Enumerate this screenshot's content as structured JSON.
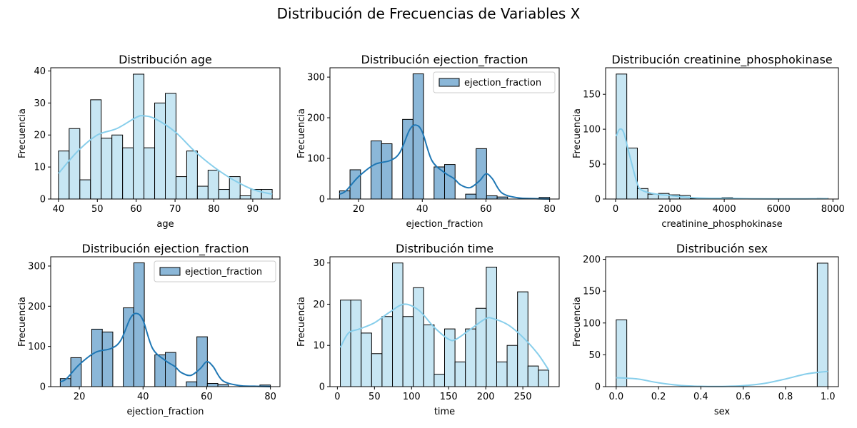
{
  "figure_title": "Distribución de Frecuencias de Variables X",
  "colors": {
    "light_fill": "#c7e6f3",
    "light_kde": "#87ceeb",
    "dark_fill": "#8bb7d8",
    "dark_kde": "#1f77b4",
    "edge": "#000000"
  },
  "chart_data": [
    {
      "type": "bar",
      "title": "Distribución age",
      "xlabel": "age",
      "ylabel": "Frecuencia",
      "color_scheme": "light",
      "bin_edges": [
        40,
        42.75,
        45.5,
        48.25,
        51,
        53.75,
        56.5,
        59.25,
        62,
        64.75,
        67.5,
        70.25,
        73,
        75.75,
        78.5,
        81.25,
        84,
        86.75,
        89.5,
        92.25,
        95
      ],
      "values": [
        15,
        22,
        6,
        31,
        19,
        20,
        16,
        39,
        16,
        30,
        33,
        7,
        15,
        4,
        9,
        3,
        7,
        1,
        3,
        3
      ],
      "kde": {
        "x": [
          40,
          45,
          50,
          55,
          60,
          62,
          65,
          70,
          75,
          80,
          85,
          90,
          95
        ],
        "y": [
          8,
          15,
          20,
          22,
          25.5,
          26,
          25,
          21,
          15,
          10,
          6,
          3,
          1.5
        ]
      },
      "xlim": [
        38,
        97
      ],
      "ylim": [
        0,
        41
      ],
      "xticks": [
        40,
        50,
        60,
        70,
        80,
        90
      ],
      "yticks": [
        0,
        10,
        20,
        30,
        40
      ],
      "legend": null
    },
    {
      "type": "bar",
      "title": "Distribución ejection_fraction",
      "xlabel": "ejection_fraction",
      "ylabel": "Frecuencia",
      "color_scheme": "dark",
      "bin_edges": [
        14,
        17.3,
        20.6,
        23.9,
        27.2,
        30.5,
        33.8,
        37.1,
        40.4,
        43.7,
        47,
        50.3,
        53.6,
        56.9,
        60.2,
        63.5,
        66.8,
        70.1,
        73.4,
        76.7,
        80
      ],
      "values": [
        20,
        72,
        0,
        143,
        136,
        0,
        196,
        308,
        0,
        79,
        85,
        0,
        12,
        124,
        8,
        5,
        0,
        0,
        0,
        4
      ],
      "kde": {
        "x": [
          14,
          16,
          20,
          25,
          30,
          33,
          36,
          38,
          40,
          43,
          47,
          50,
          52,
          55,
          58,
          60,
          62,
          65,
          70,
          75,
          80
        ],
        "y": [
          12,
          20,
          55,
          85,
          95,
          115,
          170,
          182,
          165,
          95,
          65,
          50,
          35,
          28,
          45,
          62,
          50,
          15,
          3,
          1,
          0
        ]
      },
      "xlim": [
        11,
        83
      ],
      "ylim": [
        0,
        323
      ],
      "xticks": [
        20,
        40,
        60,
        80
      ],
      "yticks": [
        0,
        100,
        200,
        300
      ],
      "legend": {
        "label": "ejection_fraction",
        "position": "upper right"
      }
    },
    {
      "type": "bar",
      "title": "Distribución creatinine_phosphokinase",
      "xlabel": "creatinine_phosphokinase",
      "ylabel": "Frecuencia",
      "color_scheme": "light",
      "bin_edges": [
        23,
        412.5,
        802,
        1191.5,
        1581,
        1970.5,
        2360,
        2749.5,
        3139,
        3528.5,
        3918,
        4307.5,
        4697,
        5086.5,
        5476,
        5865.5,
        6255,
        6644.5,
        7034,
        7423.5,
        7813
      ],
      "values": [
        179,
        73,
        15,
        7,
        8,
        6,
        5,
        1,
        1,
        0,
        2,
        1,
        0,
        0,
        0,
        0,
        0,
        0,
        0,
        1
      ],
      "kde": {
        "x": [
          23,
          150,
          300,
          500,
          800,
          1000,
          1500,
          2000,
          2500,
          3000,
          3500,
          4000,
          4500,
          5000,
          6000,
          7000,
          7813
        ],
        "y": [
          90,
          100,
          95,
          65,
          22,
          12,
          7,
          5,
          3,
          1.5,
          1,
          1,
          0.8,
          0.4,
          0.3,
          0.3,
          0.5
        ]
      },
      "xlim": [
        -367,
        8203
      ],
      "ylim": [
        0,
        188
      ],
      "xticks": [
        0,
        2000,
        4000,
        6000,
        8000
      ],
      "yticks": [
        0,
        50,
        100,
        150
      ],
      "legend": null
    },
    {
      "type": "bar",
      "title": "Distribución ejection_fraction",
      "xlabel": "ejection_fraction",
      "ylabel": "Frecuencia",
      "color_scheme": "dark",
      "bin_edges": [
        14,
        17.3,
        20.6,
        23.9,
        27.2,
        30.5,
        33.8,
        37.1,
        40.4,
        43.7,
        47,
        50.3,
        53.6,
        56.9,
        60.2,
        63.5,
        66.8,
        70.1,
        73.4,
        76.7,
        80
      ],
      "values": [
        20,
        72,
        0,
        143,
        136,
        0,
        196,
        308,
        0,
        79,
        85,
        0,
        12,
        124,
        8,
        5,
        0,
        0,
        0,
        4
      ],
      "kde": {
        "x": [
          14,
          16,
          20,
          25,
          30,
          33,
          36,
          38,
          40,
          43,
          47,
          50,
          52,
          55,
          58,
          60,
          62,
          65,
          70,
          75,
          80
        ],
        "y": [
          12,
          20,
          55,
          85,
          95,
          115,
          170,
          182,
          165,
          95,
          65,
          50,
          35,
          28,
          45,
          62,
          50,
          15,
          3,
          1,
          0
        ]
      },
      "xlim": [
        11,
        83
      ],
      "ylim": [
        0,
        323
      ],
      "xticks": [
        20,
        40,
        60,
        80
      ],
      "yticks": [
        0,
        100,
        200,
        300
      ],
      "legend": {
        "label": "ejection_fraction",
        "position": "upper right"
      }
    },
    {
      "type": "bar",
      "title": "Distribución time",
      "xlabel": "time",
      "ylabel": "Frecuencia",
      "color_scheme": "light",
      "bin_edges": [
        4,
        18.05,
        32.1,
        46.15,
        60.2,
        74.25,
        88.3,
        102.35,
        116.4,
        130.45,
        144.5,
        158.55,
        172.6,
        186.65,
        200.7,
        214.75,
        228.8,
        242.85,
        256.9,
        270.95,
        285
      ],
      "values": [
        21,
        21,
        13,
        8,
        17,
        30,
        17,
        24,
        15,
        3,
        14,
        6,
        14,
        19,
        29,
        6,
        10,
        23,
        5,
        4
      ],
      "kde": {
        "x": [
          4,
          15,
          30,
          50,
          70,
          90,
          110,
          130,
          150,
          160,
          180,
          200,
          210,
          230,
          250,
          270,
          285
        ],
        "y": [
          9.5,
          13,
          14,
          15.5,
          18,
          20,
          18.5,
          14.5,
          11.5,
          11.5,
          14,
          16.5,
          16.5,
          15,
          12,
          8,
          4
        ]
      },
      "xlim": [
        -10,
        299
      ],
      "ylim": [
        0,
        31.5
      ],
      "xticks": [
        0,
        50,
        100,
        150,
        200,
        250
      ],
      "yticks": [
        0,
        10,
        20,
        30
      ],
      "legend": null
    },
    {
      "type": "bar",
      "title": "Distribución sex",
      "xlabel": "sex",
      "ylabel": "Frecuencia",
      "color_scheme": "light",
      "bin_edges": [
        0,
        0.05,
        0.1,
        0.15,
        0.2,
        0.25,
        0.3,
        0.35,
        0.4,
        0.45,
        0.5,
        0.55,
        0.6,
        0.65,
        0.7,
        0.75,
        0.8,
        0.85,
        0.9,
        0.95,
        1.0
      ],
      "values": [
        105,
        0,
        0,
        0,
        0,
        0,
        0,
        0,
        0,
        0,
        0,
        0,
        0,
        0,
        0,
        0,
        0,
        0,
        0,
        194
      ],
      "kde": {
        "x": [
          0,
          0.1,
          0.2,
          0.3,
          0.4,
          0.5,
          0.6,
          0.7,
          0.8,
          0.9,
          1.0
        ],
        "y": [
          14,
          12,
          6,
          2,
          0.5,
          0.3,
          1.5,
          5,
          12,
          20,
          24
        ]
      },
      "xlim": [
        -0.05,
        1.05
      ],
      "ylim": [
        0,
        204
      ],
      "xticks": [
        0.0,
        0.2,
        0.4,
        0.6,
        0.8,
        1.0
      ],
      "yticks": [
        0,
        50,
        100,
        150,
        200
      ],
      "legend": null
    }
  ]
}
